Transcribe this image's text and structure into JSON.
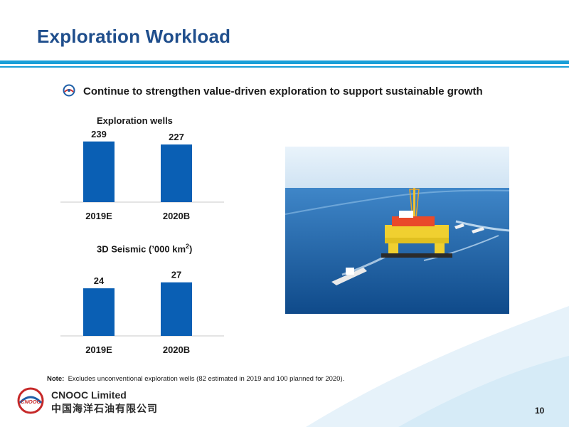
{
  "slide": {
    "title": "Exploration Workload",
    "bullet": "Continue to strengthen value-driven exploration to support sustainable growth",
    "note_label": "Note:",
    "note_text": "Excludes unconventional exploration wells (82 estimated in 2019 and 100 planned for 2020).",
    "company_en": "CNOOC Limited",
    "company_cn": "中国海洋石油有限公司",
    "logo_text": "CNOOC",
    "page_number": "10",
    "colors": {
      "title": "#1f4e8c",
      "rule": "#1a9fd8",
      "bar": "#0a5fb4",
      "bullet_icon": "#1f5fa8"
    }
  },
  "chart_data": [
    {
      "type": "bar",
      "title": "Exploration wells",
      "categories": [
        "2019E",
        "2020B"
      ],
      "values": [
        239,
        227
      ],
      "data_labels": [
        "239",
        "227"
      ],
      "ylim": [
        0,
        258
      ]
    },
    {
      "type": "bar",
      "title": "3D Seismic (’000 km²)",
      "title_main": "3D Seismic (’000 km",
      "title_sup": "2",
      "title_end": ")",
      "categories": [
        "2019E",
        "2020B"
      ],
      "values": [
        24,
        27
      ],
      "data_labels": [
        "24",
        "27"
      ],
      "ylim": [
        0,
        33
      ]
    }
  ]
}
